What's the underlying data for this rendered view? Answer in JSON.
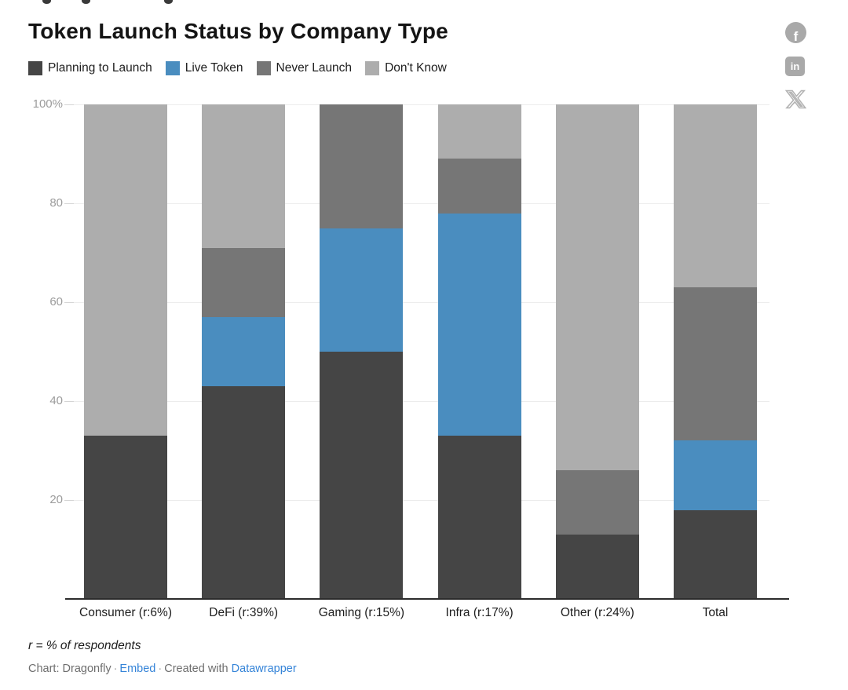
{
  "header": {
    "title": "Token Launch Status by Company Type"
  },
  "social": {
    "facebook_glyph": "f",
    "linkedin_glyph": "in"
  },
  "chart_data": {
    "type": "stacked_bar",
    "title": "Token Launch Status by Company Type",
    "categories": [
      "Consumer (r:6%)",
      "DeFi (r:39%)",
      "Gaming (r:15%)",
      "Infra (r:17%)",
      "Other (r:24%)",
      "Total"
    ],
    "series": [
      {
        "name": "Planning to Launch",
        "color": "#454545",
        "values": [
          33,
          43,
          50,
          33,
          13,
          18
        ]
      },
      {
        "name": "Live Token",
        "color": "#4a8dbf",
        "values": [
          0,
          14,
          25,
          45,
          0,
          14
        ]
      },
      {
        "name": "Never Launch",
        "color": "#767676",
        "values": [
          0,
          14,
          25,
          11,
          13,
          31
        ]
      },
      {
        "name": "Don't Know",
        "color": "#adadad",
        "values": [
          67,
          29,
          0,
          11,
          74,
          37
        ]
      }
    ],
    "y_ticks": [
      "100%",
      "80",
      "60",
      "40",
      "20"
    ],
    "ylim": [
      0,
      100
    ],
    "grid": true,
    "legend_position": "top",
    "bar_unit": "percent"
  },
  "footer": {
    "note": "r = % of respondents",
    "credit_chart": "Chart: Dragonfly",
    "separator": "·",
    "embed_label": "Embed",
    "created_with": "Created with",
    "datawrapper_label": "Datawrapper"
  },
  "colors": {
    "link_blue": "#3584d8",
    "icon_gray": "#a9a9a9",
    "axis_label_gray": "#9c9c9c"
  }
}
